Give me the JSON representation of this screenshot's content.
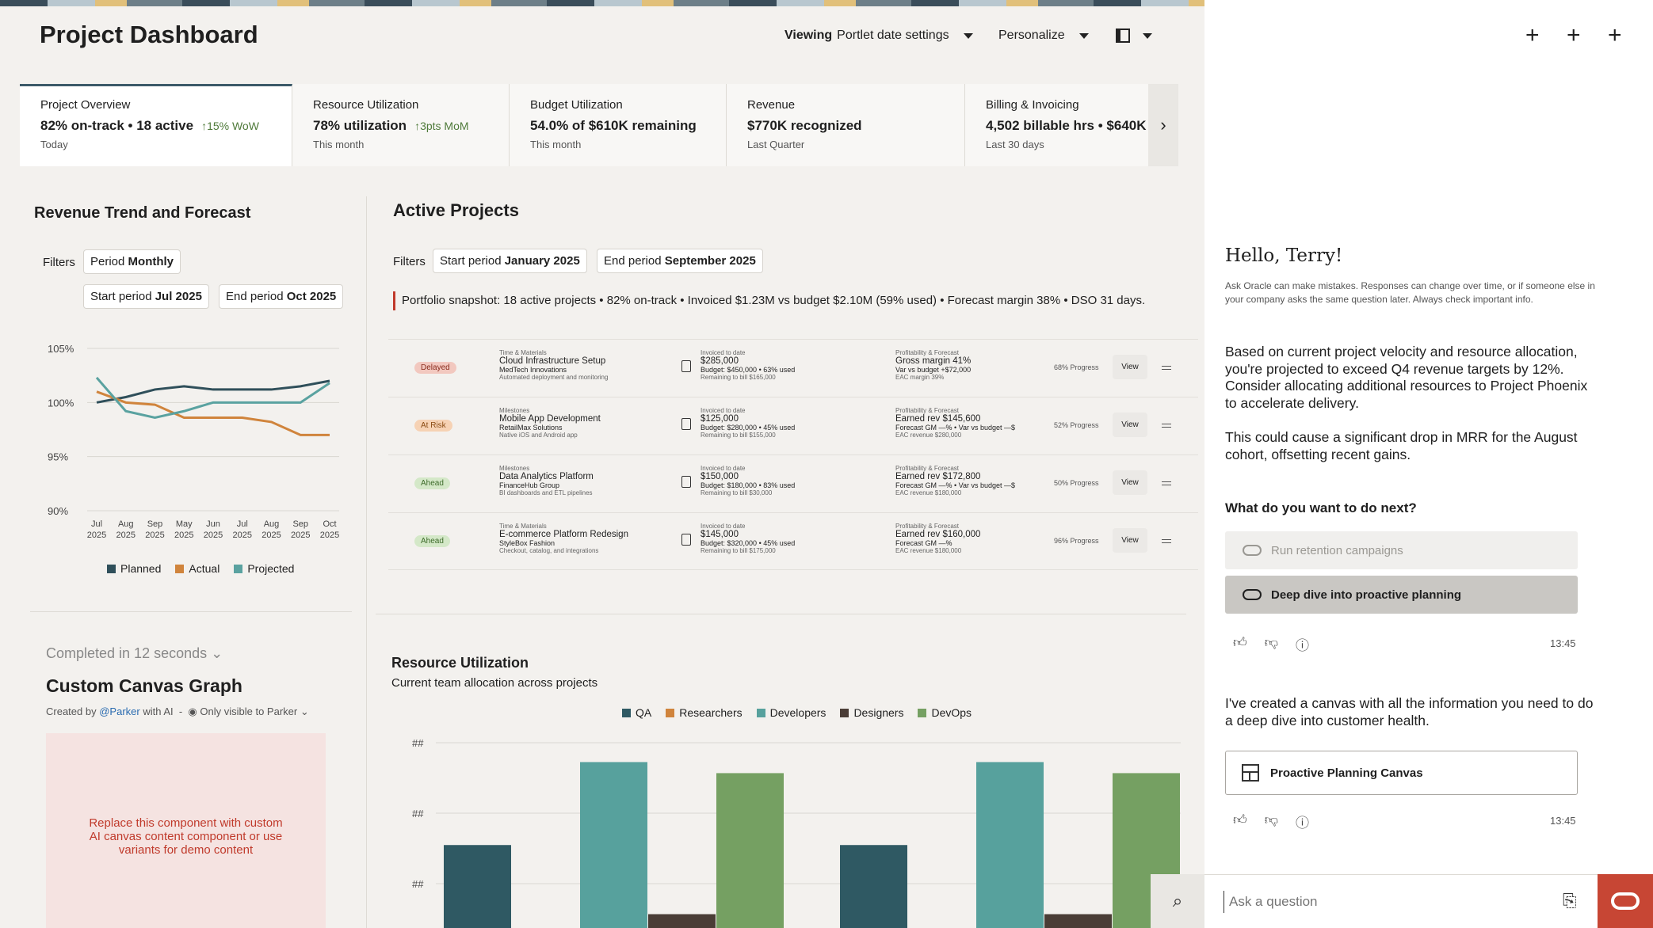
{
  "header": {
    "title": "Project Dashboard",
    "viewing_prefix": "Viewing",
    "viewing_value": "Portlet date settings",
    "personalize": "Personalize"
  },
  "kpis": [
    {
      "label": "Project Overview",
      "value": "82% on-track • 18 active",
      "delta": "↑15% WoW",
      "period": "Today"
    },
    {
      "label": "Resource Utilization",
      "value": "78% utilization",
      "delta": "↑3pts MoM",
      "period": "This month"
    },
    {
      "label": "Budget Utilization",
      "value": "54.0% of $610K remaining",
      "delta": "",
      "period": "This month"
    },
    {
      "label": "Revenue",
      "value": "$770K recognized",
      "delta": "",
      "period": "Last Quarter"
    },
    {
      "label": "Billing & Invoicing",
      "value": "4,502 billable hrs • $640K",
      "delta": "",
      "period": "Last 30 days"
    }
  ],
  "revenue": {
    "title": "Revenue Trend and Forecast",
    "filters_label": "Filters",
    "period_label": "Period",
    "period_value": "Monthly",
    "start_label": "Start period",
    "start_value": "Jul 2025",
    "end_label": "End period",
    "end_value": "Oct 2025"
  },
  "chart_data": [
    {
      "type": "line",
      "x": [
        "Jul 2025",
        "Aug 2025",
        "Sep 2025",
        "May 2025",
        "Jun 2025",
        "Jul 2025",
        "Aug 2025",
        "Sep 2025",
        "Oct 2025"
      ],
      "yticks": [
        "105%",
        "100%",
        "95%",
        "90%"
      ],
      "ylim": [
        90,
        105
      ],
      "series": [
        {
          "name": "Planned",
          "color": "#2f4f5a",
          "values": [
            100,
            100.5,
            101.2,
            101.5,
            101.2,
            101.2,
            101.2,
            101.5,
            102
          ]
        },
        {
          "name": "Actual",
          "color": "#d0843c",
          "values": [
            101,
            100,
            99.8,
            98.6,
            98.6,
            98.6,
            98.2,
            97,
            97
          ]
        },
        {
          "name": "Projected",
          "color": "#5aa2a0",
          "values": [
            102.3,
            99.2,
            98.6,
            99.2,
            100,
            100,
            100,
            100,
            101.8
          ]
        }
      ],
      "grid": true,
      "legend": "bottom"
    },
    {
      "type": "bar",
      "title": "Resource Utilization",
      "subtitle": "Current team allocation across projects",
      "yticks": [
        "##",
        "##",
        "##"
      ],
      "series": [
        {
          "name": "QA",
          "color": "#2f5963"
        },
        {
          "name": "Researchers",
          "color": "#d0843c"
        },
        {
          "name": "Developers",
          "color": "#57a19d"
        },
        {
          "name": "Designers",
          "color": "#4a3d36"
        },
        {
          "name": "DevOps",
          "color": "#75a062"
        }
      ],
      "groups": [
        {
          "values": [
            {
              "series": "QA",
              "value": 3
            },
            {
              "series": "Developers",
              "value": 6
            },
            {
              "series": "Designers",
              "value": 0.5
            },
            {
              "series": "DevOps",
              "value": 5.6
            }
          ]
        },
        {
          "values": [
            {
              "series": "QA",
              "value": 3
            },
            {
              "series": "Developers",
              "value": 6
            },
            {
              "series": "Designers",
              "value": 0.5
            },
            {
              "series": "DevOps",
              "value": 5.6
            }
          ]
        }
      ],
      "legend": "top"
    }
  ],
  "projects": {
    "title": "Active Projects",
    "filters_label": "Filters",
    "start_label": "Start period",
    "start_value": "January 2025",
    "end_label": "End period",
    "end_value": "September 2025",
    "snapshot": "Portfolio snapshot: 18 active projects • 82% on-track • Invoiced $1.23M vs budget $2.10M (59% used) • Forecast margin 38% • DSO 31 days.",
    "rows": [
      {
        "status": "Delayed",
        "status_bg": "#f2c8bf",
        "status_fg": "#8a2d1e",
        "type": "Time & Materials",
        "name": "Cloud Infrastructure Setup",
        "client": "MedTech Innovations",
        "desc": "Automated deployment and monitoring",
        "inv_label": "Invoiced to date",
        "invoiced": "$285,000",
        "budget": "Budget: $450,000 • 63% used",
        "remaining": "Remaining to bill $165,000",
        "pf_label": "Profitability & Forecast",
        "pf_main": "Gross margin 41%",
        "pf_sub": "Var vs budget +$72,000",
        "pf_eac": "EAC margin 39%",
        "progress": "68% Progress",
        "view": "View"
      },
      {
        "status": "At Risk",
        "status_bg": "#f6d2b4",
        "status_fg": "#8a4a12",
        "type": "Milestones",
        "name": "Mobile App Development",
        "client": "RetailMax Solutions",
        "desc": "Native iOS and Android app",
        "inv_label": "Invoiced to date",
        "invoiced": "$125,000",
        "budget": "Budget: $280,000 • 45% used",
        "remaining": "Remaining to bill $155,000",
        "pf_label": "Profitability & Forecast",
        "pf_main": "Earned rev $145,600",
        "pf_sub": "Forecast GM —% • Var vs budget —$",
        "pf_eac": "EAC revenue $280,000",
        "progress": "52% Progress",
        "view": "View"
      },
      {
        "status": "Ahead",
        "status_bg": "#d4e8c8",
        "status_fg": "#3d6b2a",
        "type": "Milestones",
        "name": "Data Analytics Platform",
        "client": "FinanceHub Group",
        "desc": "BI dashboards and ETL pipelines",
        "inv_label": "Invoiced to date",
        "invoiced": "$150,000",
        "budget": "Budget: $180,000 • 83% used",
        "remaining": "Remaining to bill $30,000",
        "pf_label": "Profitability & Forecast",
        "pf_main": "Earned rev $172,800",
        "pf_sub": "Forecast GM —% • Var vs budget —$",
        "pf_eac": "EAC revenue $180,000",
        "progress": "50% Progress",
        "view": "View"
      },
      {
        "status": "Ahead",
        "status_bg": "#d4e8c8",
        "status_fg": "#3d6b2a",
        "type": "Time & Materials",
        "name": "E-commerce Platform Redesign",
        "client": "StyleBox Fashion",
        "desc": "Checkout, catalog, and integrations",
        "inv_label": "Invoiced to date",
        "invoiced": "$145,000",
        "budget": "Budget: $320,000 • 45% used",
        "remaining": "Remaining to bill $175,000",
        "pf_label": "Profitability & Forecast",
        "pf_main": "Earned rev $160,000",
        "pf_sub": "Forecast GM —%",
        "pf_eac": "EAC revenue $180,000",
        "progress": "96% Progress",
        "view": "View"
      }
    ]
  },
  "canvas": {
    "completed": "Completed in 12 seconds",
    "title": "Custom Canvas Graph",
    "created_prefix": "Created by",
    "created_user": "@Parker",
    "created_suffix": "with AI",
    "visibility": "Only visible to Parker",
    "placeholder": "Replace this component with custom AI canvas content component or use variants for demo content"
  },
  "assistant": {
    "greeting": "Hello, Terry!",
    "disclaimer": "Ask Oracle can make mistakes. Responses can change over time, or if someone else in your company asks the same question later. Always check important info.",
    "para1": "Based on current project velocity and resource allocation, you're projected to exceed Q4 revenue targets by 12%. Consider allocating additional resources to Project Phoenix to accelerate delivery.",
    "para2": "This could cause a significant drop in MRR for the August cohort, offsetting recent gains.",
    "question": "What do you want to do next?",
    "option1": "Run retention campaigns",
    "option2": "Deep dive into proactive planning",
    "time1": "13:45",
    "para3": "I've created a canvas with all the information you need to do a deep dive into customer health.",
    "canvas_button": "Proactive Planning Canvas",
    "time2": "13:45",
    "ask_placeholder": "Ask a question"
  }
}
